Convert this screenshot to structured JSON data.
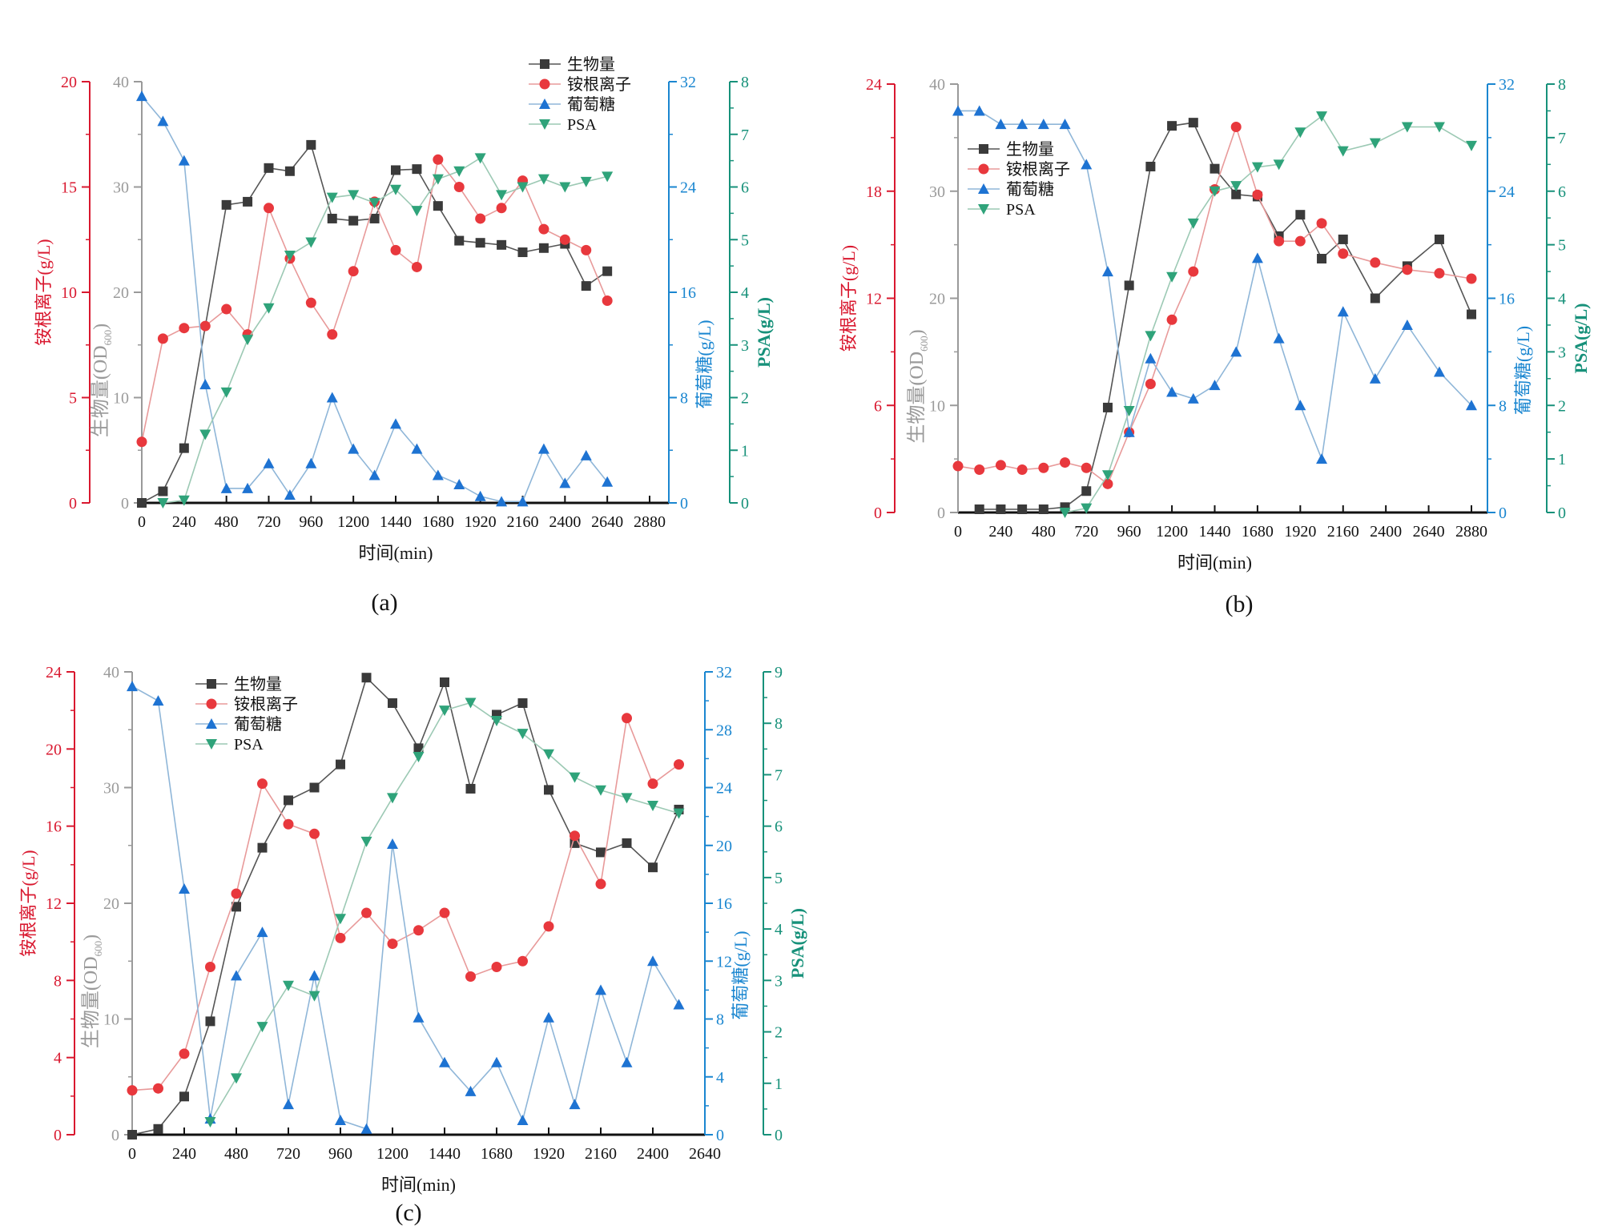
{
  "chart_data": [
    {
      "type": "line",
      "panel_label": "(a)",
      "xlabel": "时间(min)",
      "xlim": [
        0,
        2880
      ],
      "x_ticks": [
        0,
        240,
        480,
        720,
        960,
        1200,
        1440,
        1680,
        1920,
        2160,
        2400,
        2640,
        2880
      ],
      "axes": {
        "ammonium": {
          "label": "铵根离子(g/L)",
          "ylim": [
            0,
            20
          ],
          "ticks": [
            0,
            5,
            10,
            15,
            20
          ],
          "color": "#d9182f"
        },
        "biomass": {
          "label": "生物量(OD",
          "label_sub": "600",
          "label_end": ")",
          "ylim": [
            0,
            40
          ],
          "ticks": [
            0,
            10,
            20,
            30,
            40
          ],
          "color": "#9a9a9a"
        },
        "glucose": {
          "label": "葡萄糖(g/L)",
          "ylim": [
            0,
            32
          ],
          "ticks": [
            0,
            8,
            16,
            24,
            32
          ],
          "color": "#1a86d0"
        },
        "psa": {
          "label": "PSA(g/L)",
          "ylim": [
            0,
            8
          ],
          "ticks": [
            0,
            1,
            2,
            3,
            4,
            5,
            6,
            7,
            8
          ],
          "color": "#17917a"
        }
      },
      "x": [
        0,
        120,
        240,
        360,
        480,
        600,
        720,
        840,
        960,
        1080,
        1200,
        1320,
        1440,
        1560,
        1680,
        1800,
        1920,
        2040,
        2160,
        2280,
        2400,
        2520,
        2640
      ],
      "series": [
        {
          "name": "生物量",
          "axis": "biomass",
          "marker": "square",
          "color": "#3a3a3a",
          "y": [
            0,
            1.1,
            5.2,
            null,
            28.3,
            28.6,
            31.8,
            31.5,
            34.0,
            27.0,
            26.8,
            27.0,
            31.6,
            31.7,
            28.2,
            24.9,
            24.7,
            24.5,
            23.8,
            24.2,
            24.6,
            20.6,
            22.0
          ]
        },
        {
          "name": "铵根离子",
          "axis": "ammonium",
          "marker": "circle",
          "color": "#e8383d",
          "y": [
            2.9,
            7.8,
            8.3,
            8.4,
            9.2,
            8.0,
            14.0,
            11.6,
            9.5,
            8.0,
            11.0,
            14.3,
            12.0,
            11.2,
            16.3,
            15.0,
            13.5,
            14.0,
            15.3,
            13.0,
            12.5,
            12.0,
            9.6
          ]
        },
        {
          "name": "葡萄糖",
          "axis": "glucose",
          "marker": "triangle-up",
          "color": "#1e73d2",
          "y": [
            30.9,
            29.0,
            26.0,
            9.0,
            1.1,
            1.1,
            3.0,
            0.6,
            3.0,
            8.0,
            4.1,
            2.1,
            6.0,
            4.1,
            2.1,
            1.4,
            0.5,
            0.1,
            0.1,
            4.1,
            1.5,
            3.6,
            1.6
          ]
        },
        {
          "name": "PSA",
          "axis": "psa",
          "marker": "triangle-down",
          "color": "#2fa37a",
          "y": [
            null,
            0,
            0.05,
            1.3,
            2.1,
            3.1,
            3.7,
            4.7,
            4.95,
            5.8,
            5.85,
            5.7,
            5.95,
            5.55,
            6.15,
            6.3,
            6.55,
            5.85,
            6.0,
            6.15,
            6.0,
            6.1,
            6.2
          ]
        }
      ]
    },
    {
      "type": "line",
      "panel_label": "(b)",
      "xlabel": "时间(min)",
      "xlim": [
        0,
        2880
      ],
      "x_ticks": [
        0,
        240,
        480,
        720,
        960,
        1200,
        1440,
        1680,
        1920,
        2160,
        2400,
        2640,
        2880
      ],
      "axes": {
        "ammonium": {
          "label": "铵根离子(g/L)",
          "ylim": [
            0,
            24
          ],
          "ticks": [
            0,
            6,
            12,
            18,
            24
          ],
          "color": "#d9182f"
        },
        "biomass": {
          "label": "生物量(OD",
          "label_sub": "600",
          "label_end": ")",
          "ylim": [
            0,
            40
          ],
          "ticks": [
            0,
            10,
            20,
            30,
            40
          ],
          "color": "#9a9a9a"
        },
        "glucose": {
          "label": "葡萄糖(g/L)",
          "ylim": [
            0,
            32
          ],
          "ticks": [
            0,
            8,
            16,
            24,
            32
          ],
          "color": "#1a86d0"
        },
        "psa": {
          "label": "PSA(g/L)",
          "ylim": [
            0,
            8
          ],
          "ticks": [
            0,
            1,
            2,
            3,
            4,
            5,
            6,
            7,
            8
          ],
          "color": "#17917a"
        }
      },
      "x": [
        0,
        120,
        240,
        360,
        480,
        600,
        720,
        840,
        960,
        1080,
        1200,
        1320,
        1440,
        1560,
        1680,
        1800,
        1920,
        2040,
        2160,
        2340,
        2520,
        2700,
        2880
      ],
      "series": [
        {
          "name": "生物量",
          "axis": "biomass",
          "marker": "square",
          "color": "#3a3a3a",
          "y": [
            null,
            0.3,
            0.3,
            0.3,
            0.3,
            0.5,
            2.0,
            9.8,
            21.2,
            32.3,
            36.1,
            36.4,
            32.1,
            29.7,
            29.5,
            25.8,
            27.8,
            23.7,
            25.5,
            20.0,
            23.0,
            25.5,
            18.5
          ]
        },
        {
          "name": "铵根离子",
          "axis": "ammonium",
          "marker": "circle",
          "color": "#e8383d",
          "y": [
            2.6,
            2.4,
            2.65,
            2.4,
            2.5,
            2.8,
            2.5,
            1.6,
            4.5,
            7.2,
            10.8,
            13.5,
            18.1,
            21.6,
            17.8,
            15.2,
            15.2,
            16.2,
            14.5,
            14.0,
            13.6,
            13.4,
            13.1
          ]
        },
        {
          "name": "葡萄糖",
          "axis": "glucose",
          "marker": "triangle-up",
          "color": "#1e73d2",
          "y": [
            30.0,
            30.0,
            29.0,
            29.0,
            29.0,
            29.0,
            26.0,
            18.0,
            6.0,
            11.5,
            9.0,
            8.5,
            9.5,
            12.0,
            19.0,
            13.0,
            8.0,
            4.0,
            15.0,
            10.0,
            14.0,
            10.5,
            8.0
          ]
        },
        {
          "name": "PSA",
          "axis": "psa",
          "marker": "triangle-down",
          "color": "#2fa37a",
          "y": [
            null,
            null,
            null,
            null,
            null,
            0,
            0.08,
            0.7,
            1.9,
            3.3,
            4.4,
            5.4,
            6.0,
            6.1,
            6.45,
            6.5,
            7.1,
            7.4,
            6.75,
            6.9,
            7.2,
            7.2,
            6.85
          ]
        }
      ]
    },
    {
      "type": "line",
      "panel_label": "(c)",
      "xlabel": "时间(min)",
      "xlim": [
        0,
        2640
      ],
      "x_ticks": [
        0,
        240,
        480,
        720,
        960,
        1200,
        1440,
        1680,
        1920,
        2160,
        2400,
        2640
      ],
      "axes": {
        "ammonium": {
          "label": "铵根离子(g/L)",
          "ylim": [
            0,
            24
          ],
          "ticks": [
            0,
            4,
            8,
            12,
            16,
            20,
            24
          ],
          "color": "#d9182f"
        },
        "biomass": {
          "label": "生物量(OD",
          "label_sub": "600",
          "label_end": ")",
          "ylim": [
            0,
            40
          ],
          "ticks": [
            0,
            10,
            20,
            30,
            40
          ],
          "color": "#9a9a9a"
        },
        "glucose": {
          "label": "葡萄糖(g/L)",
          "ylim": [
            0,
            32
          ],
          "ticks": [
            0,
            4,
            8,
            12,
            16,
            20,
            24,
            28,
            32
          ],
          "color": "#1a86d0"
        },
        "psa": {
          "label": "PSA(g/L)",
          "ylim": [
            0,
            9
          ],
          "ticks": [
            0,
            1,
            2,
            3,
            4,
            5,
            6,
            7,
            8,
            9
          ],
          "color": "#17917a"
        }
      },
      "x": [
        0,
        120,
        240,
        360,
        480,
        600,
        720,
        840,
        960,
        1080,
        1200,
        1320,
        1440,
        1560,
        1680,
        1800,
        1920,
        2040,
        2160,
        2280,
        2400,
        2520
      ],
      "series": [
        {
          "name": "生物量",
          "axis": "biomass",
          "marker": "square",
          "color": "#3a3a3a",
          "y": [
            0,
            0.5,
            3.3,
            9.8,
            19.7,
            24.8,
            28.9,
            30.0,
            32.0,
            39.5,
            37.3,
            33.4,
            39.1,
            29.9,
            36.3,
            37.3,
            29.8,
            25.2,
            24.4,
            25.2,
            23.1,
            28.1
          ]
        },
        {
          "name": "铵根离子",
          "axis": "ammonium",
          "marker": "circle",
          "color": "#e8383d",
          "y": [
            2.3,
            2.4,
            4.2,
            8.7,
            12.5,
            18.2,
            16.1,
            15.6,
            10.2,
            11.5,
            9.9,
            10.6,
            11.5,
            8.2,
            8.7,
            9.0,
            10.8,
            15.5,
            13.0,
            21.6,
            18.2,
            19.2
          ]
        },
        {
          "name": "葡萄糖",
          "axis": "glucose",
          "marker": "triangle-up",
          "color": "#1e73d2",
          "y": [
            31.0,
            30.0,
            17.0,
            1.1,
            11.0,
            14.0,
            2.1,
            11.0,
            1.0,
            0.4,
            20.1,
            8.1,
            5.0,
            3.0,
            5.0,
            1.0,
            8.1,
            2.1,
            10.0,
            5.0,
            12.0,
            9.0
          ]
        },
        {
          "name": "PSA",
          "axis": "psa",
          "marker": "triangle-down",
          "color": "#2fa37a",
          "y": [
            null,
            null,
            null,
            0.25,
            1.1,
            2.1,
            2.9,
            2.7,
            4.2,
            5.7,
            6.55,
            7.35,
            8.25,
            8.4,
            8.05,
            7.8,
            7.4,
            6.95,
            6.7,
            6.55,
            6.4,
            6.25
          ]
        }
      ]
    }
  ]
}
